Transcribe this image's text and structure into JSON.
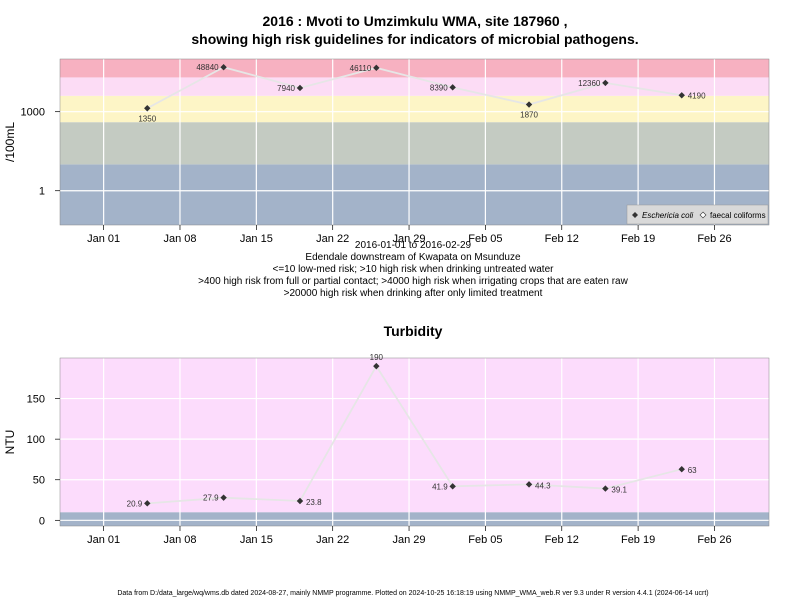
{
  "chart_data": [
    {
      "type": "line",
      "title_line1": "2016 : Mvoti to Umzimkulu WMA, site 187960 ,",
      "title_line2": "showing high risk guidelines for indicators of microbial pathogens.",
      "ylabel": "/100mL",
      "y_scale": "log",
      "y_ticks": [
        {
          "value": 1,
          "label": "1"
        },
        {
          "value": 1000,
          "label": "1000"
        }
      ],
      "x_ticks": [
        "Jan 01",
        "Jan 08",
        "Jan 15",
        "Jan 22",
        "Jan 29",
        "Feb 05",
        "Feb 12",
        "Feb 19",
        "Feb 26"
      ],
      "bands": [
        {
          "from": 0.05,
          "to": 10,
          "color": "#a3b3c9"
        },
        {
          "from": 10,
          "to": 400,
          "color": "#c4cbc2"
        },
        {
          "from": 400,
          "to": 4000,
          "color": "#fdf5c6"
        },
        {
          "from": 4000,
          "to": 20000,
          "color": "#fcdcf5"
        },
        {
          "from": 20000,
          "to": 100000,
          "color": "#f7b1c1"
        }
      ],
      "series": [
        {
          "name": "Eschericia coli",
          "points": [
            {
              "x": "2016-01-05",
              "y": 1350,
              "label": "1350"
            },
            {
              "x": "2016-01-12",
              "y": 48840,
              "label": "48840"
            },
            {
              "x": "2016-01-19",
              "y": 7940,
              "label": "7940"
            },
            {
              "x": "2016-01-26",
              "y": 46110,
              "label": "46110"
            },
            {
              "x": "2016-02-02",
              "y": 8390,
              "label": "8390"
            },
            {
              "x": "2016-02-09",
              "y": 1870,
              "label": "1870"
            },
            {
              "x": "2016-02-16",
              "y": 12360,
              "label": "12360"
            },
            {
              "x": "2016-02-23",
              "y": 4190,
              "label": "4190"
            }
          ]
        }
      ],
      "legend": [
        {
          "label": "Eschericia coli",
          "marker": "filled-diamond"
        },
        {
          "label": "faecal coliforms",
          "marker": "open-diamond"
        }
      ],
      "legend_position": "bottom-right",
      "notes": [
        "2016-01-01 to 2016-02-29",
        "Edendale downstream of Kwapata on Msunduze",
        "<=10 low-med risk; >10 high risk when drinking untreated water",
        ">400 high risk from full or partial contact; >4000 high risk when irrigating crops that are eaten raw",
        ">20000 high risk when drinking after only limited treatment"
      ]
    },
    {
      "type": "line",
      "title": "Turbidity",
      "ylabel": "NTU",
      "y_scale": "linear",
      "ylim": [
        -7,
        200
      ],
      "y_ticks": [
        {
          "value": 0,
          "label": "0"
        },
        {
          "value": 50,
          "label": "50"
        },
        {
          "value": 100,
          "label": "100"
        },
        {
          "value": 150,
          "label": "150"
        }
      ],
      "x_ticks": [
        "Jan 01",
        "Jan 08",
        "Jan 15",
        "Jan 22",
        "Jan 29",
        "Feb 05",
        "Feb 12",
        "Feb 19",
        "Feb 26"
      ],
      "bands": [
        {
          "from": -7,
          "to": 10,
          "color": "#a3b3c9"
        },
        {
          "from": 10,
          "to": 200,
          "color": "#fcdcfc"
        }
      ],
      "series": [
        {
          "points": [
            {
              "x": "2016-01-05",
              "y": 20.9,
              "label": "20.9"
            },
            {
              "x": "2016-01-12",
              "y": 27.9,
              "label": "27.9"
            },
            {
              "x": "2016-01-19",
              "y": 23.8,
              "label": "23.8"
            },
            {
              "x": "2016-01-26",
              "y": 190,
              "label": "190"
            },
            {
              "x": "2016-02-02",
              "y": 41.9,
              "label": "41.9"
            },
            {
              "x": "2016-02-09",
              "y": 44.3,
              "label": "44.3"
            },
            {
              "x": "2016-02-16",
              "y": 39.1,
              "label": "39.1"
            },
            {
              "x": "2016-02-23",
              "y": 63,
              "label": "63"
            }
          ]
        }
      ]
    }
  ],
  "footer": "Data from D:/data_large/wq/wms.db dated 2024-08-27, mainly NMMP programme. Plotted on 2024-10-25 16:18:19 using NMMP_WMA_web.R ver 9.3 under R version 4.4.1 (2024-06-14 ucrt)",
  "colors": {
    "line": "#e6e6e6",
    "marker": "#333333",
    "grid": "#ffffff"
  }
}
